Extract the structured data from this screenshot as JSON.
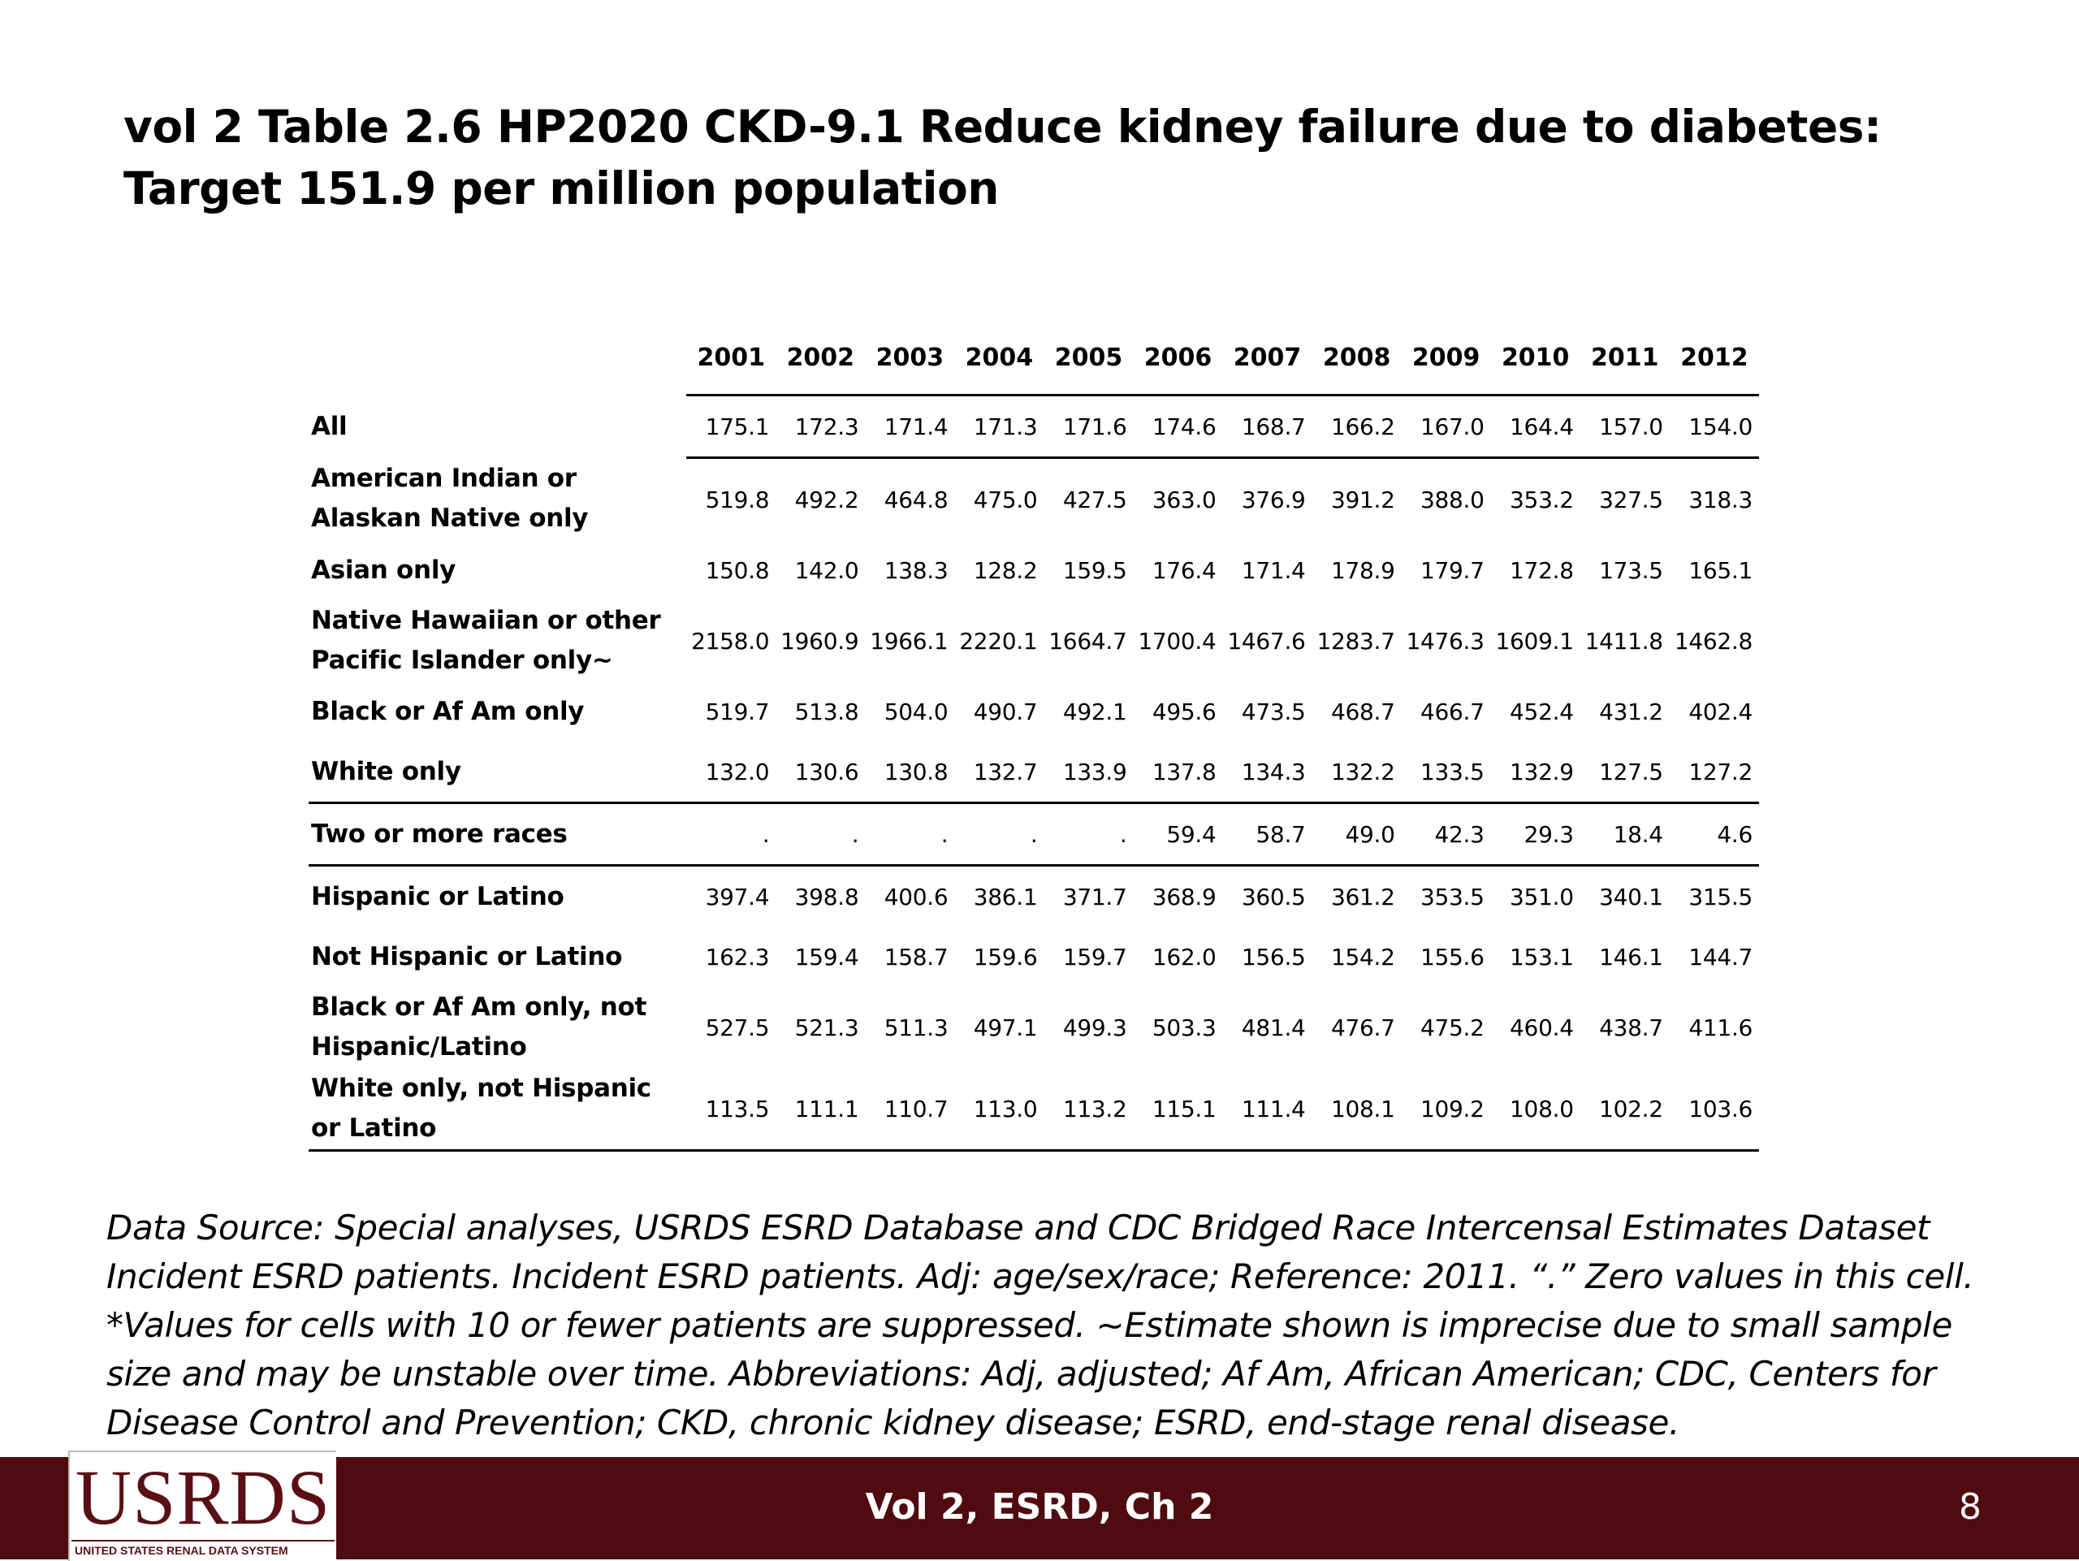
{
  "title": "vol 2 Table 2.6  HP2020 CKD-9.1 Reduce kidney failure due to diabetes: Target 151.9 per million population",
  "table": {
    "years": [
      "2001",
      "2002",
      "2003",
      "2004",
      "2005",
      "2006",
      "2007",
      "2008",
      "2009",
      "2010",
      "2011",
      "2012"
    ],
    "rows": [
      {
        "label": "All",
        "values": [
          "175.1",
          "172.3",
          "171.4",
          "171.3",
          "171.6",
          "174.6",
          "168.7",
          "166.2",
          "167.0",
          "164.4",
          "157.0",
          "154.0"
        ]
      },
      {
        "label": "American Indian or Alaskan Native only",
        "values": [
          "519.8",
          "492.2",
          "464.8",
          "475.0",
          "427.5",
          "363.0",
          "376.9",
          "391.2",
          "388.0",
          "353.2",
          "327.5",
          "318.3"
        ]
      },
      {
        "label": "Asian only",
        "values": [
          "150.8",
          "142.0",
          "138.3",
          "128.2",
          "159.5",
          "176.4",
          "171.4",
          "178.9",
          "179.7",
          "172.8",
          "173.5",
          "165.1"
        ]
      },
      {
        "label": "Native Hawaiian or other Pacific Islander only~",
        "values": [
          "2158.0",
          "1960.9",
          "1966.1",
          "2220.1",
          "1664.7",
          "1700.4",
          "1467.6",
          "1283.7",
          "1476.3",
          "1609.1",
          "1411.8",
          "1462.8"
        ]
      },
      {
        "label": "Black or Af Am only",
        "values": [
          "519.7",
          "513.8",
          "504.0",
          "490.7",
          "492.1",
          "495.6",
          "473.5",
          "468.7",
          "466.7",
          "452.4",
          "431.2",
          "402.4"
        ]
      },
      {
        "label": "White only",
        "values": [
          "132.0",
          "130.6",
          "130.8",
          "132.7",
          "133.9",
          "137.8",
          "134.3",
          "132.2",
          "133.5",
          "132.9",
          "127.5",
          "127.2"
        ]
      },
      {
        "label": "Two or more races",
        "values": [
          ".",
          ".",
          ".",
          ".",
          ".",
          "59.4",
          "58.7",
          "49.0",
          "42.3",
          "29.3",
          "18.4",
          "4.6"
        ]
      },
      {
        "label": "Hispanic or Latino",
        "values": [
          "397.4",
          "398.8",
          "400.6",
          "386.1",
          "371.7",
          "368.9",
          "360.5",
          "361.2",
          "353.5",
          "351.0",
          "340.1",
          "315.5"
        ]
      },
      {
        "label": "Not Hispanic or Latino",
        "values": [
          "162.3",
          "159.4",
          "158.7",
          "159.6",
          "159.7",
          "162.0",
          "156.5",
          "154.2",
          "155.6",
          "153.1",
          "146.1",
          "144.7"
        ]
      },
      {
        "label": "Black or Af Am only, not Hispanic/Latino",
        "values": [
          "527.5",
          "521.3",
          "511.3",
          "497.1",
          "499.3",
          "503.3",
          "481.4",
          "476.7",
          "475.2",
          "460.4",
          "438.7",
          "411.6"
        ]
      },
      {
        "label": "White only, not Hispanic or Latino",
        "values": [
          "113.5",
          "111.1",
          "110.7",
          "113.0",
          "113.2",
          "115.1",
          "111.4",
          "108.1",
          "109.2",
          "108.0",
          "102.2",
          "103.6"
        ]
      }
    ]
  },
  "footnote": "Data Source: Special analyses, USRDS ESRD Database and CDC Bridged Race Intercensal Estimates Dataset Incident ESRD patients. Incident ESRD patients. Adj: age/sex/race; Reference: 2011. “.” Zero values in this cell. *Values for cells with 10 or fewer patients are suppressed. ~Estimate shown is imprecise due to small sample size and may be unstable over time. Abbreviations: Adj, adjusted; Af Am, African American; CDC, Centers for Disease Control and Prevention; CKD, chronic kidney disease; ESRD, end-stage renal disease.",
  "footer": {
    "logo_text": "USRDS",
    "logo_subtext": "UNITED STATES RENAL DATA SYSTEM",
    "center_text": "Vol 2, ESRD, Ch 2",
    "page_number": "8",
    "bar_color": "#4f0b0f"
  }
}
